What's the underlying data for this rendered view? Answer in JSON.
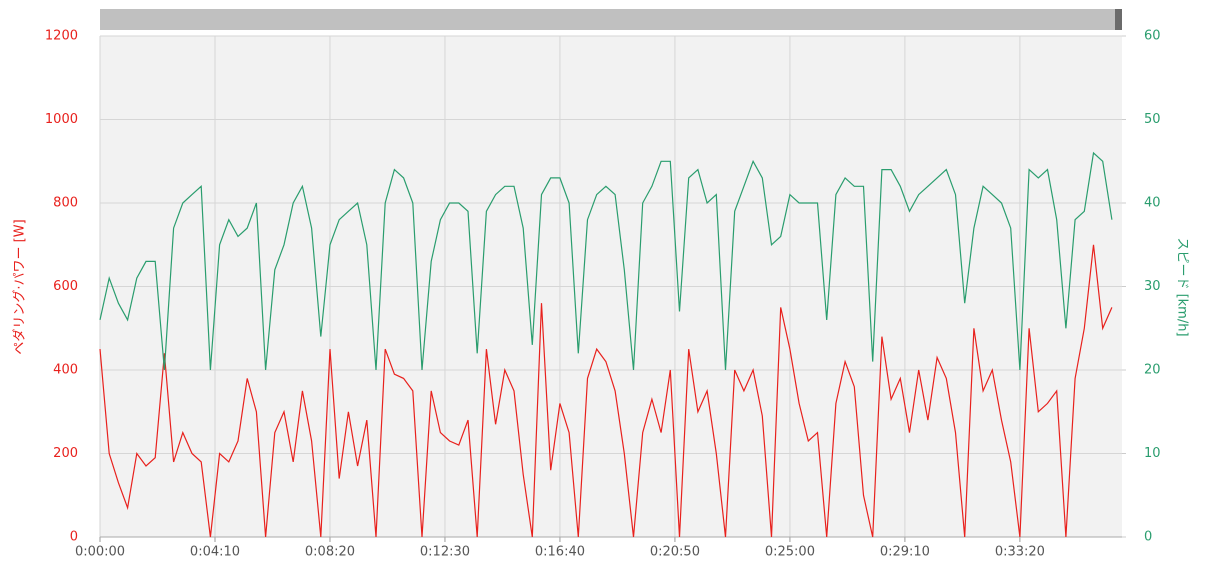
{
  "chart_data": {
    "type": "line",
    "x": [
      0,
      20,
      40,
      60,
      80,
      100,
      120,
      140,
      160,
      180,
      200,
      220,
      240,
      260,
      280,
      300,
      320,
      340,
      360,
      380,
      400,
      420,
      440,
      460,
      480,
      500,
      520,
      540,
      560,
      580,
      600,
      620,
      640,
      660,
      680,
      700,
      720,
      740,
      760,
      780,
      800,
      820,
      840,
      860,
      880,
      900,
      920,
      940,
      960,
      980,
      1000,
      1020,
      1040,
      1060,
      1080,
      1100,
      1120,
      1140,
      1160,
      1180,
      1200,
      1220,
      1240,
      1260,
      1280,
      1300,
      1320,
      1340,
      1360,
      1380,
      1400,
      1420,
      1440,
      1460,
      1480,
      1500,
      1520,
      1540,
      1560,
      1580,
      1600,
      1620,
      1640,
      1660,
      1680,
      1700,
      1720,
      1740,
      1760,
      1780,
      1800,
      1820,
      1840,
      1860,
      1880,
      1900,
      1920,
      1940,
      1960,
      1980,
      2000,
      2020,
      2040,
      2060,
      2080,
      2100,
      2120,
      2140,
      2160,
      2180,
      2200
    ],
    "series": [
      {
        "name": "ペダリング·パワー [W]",
        "color": "#e8211d",
        "values": [
          450,
          200,
          130,
          70,
          200,
          170,
          190,
          440,
          180,
          250,
          200,
          180,
          0,
          200,
          180,
          230,
          380,
          300,
          0,
          250,
          300,
          180,
          350,
          230,
          0,
          450,
          140,
          300,
          170,
          280,
          0,
          450,
          390,
          380,
          350,
          0,
          350,
          250,
          230,
          220,
          280,
          0,
          450,
          270,
          400,
          350,
          150,
          0,
          560,
          160,
          320,
          250,
          0,
          380,
          450,
          420,
          350,
          200,
          0,
          250,
          330,
          250,
          400,
          0,
          450,
          300,
          350,
          200,
          0,
          400,
          350,
          400,
          290,
          0,
          550,
          450,
          320,
          230,
          250,
          0,
          320,
          420,
          360,
          100,
          0,
          480,
          330,
          380,
          250,
          400,
          280,
          430,
          380,
          250,
          0,
          500,
          350,
          400,
          280,
          180,
          0,
          500,
          300,
          320,
          350,
          0,
          380,
          500,
          700,
          500,
          550
        ]
      },
      {
        "name": "スピード [km/h]",
        "color": "#2a9d6e",
        "axis": "y2",
        "values": [
          26,
          31,
          28,
          26,
          31,
          33,
          33,
          20,
          37,
          40,
          41,
          42,
          20,
          35,
          38,
          36,
          37,
          40,
          20,
          32,
          35,
          40,
          42,
          37,
          24,
          35,
          38,
          39,
          40,
          35,
          20,
          40,
          44,
          43,
          40,
          20,
          33,
          38,
          40,
          40,
          39,
          22,
          39,
          41,
          42,
          42,
          37,
          23,
          41,
          43,
          43,
          40,
          22,
          38,
          41,
          42,
          41,
          32,
          20,
          40,
          42,
          45,
          45,
          27,
          43,
          44,
          40,
          41,
          20,
          39,
          42,
          45,
          43,
          35,
          36,
          41,
          40,
          40,
          40,
          26,
          41,
          43,
          42,
          42,
          21,
          44,
          44,
          42,
          39,
          41,
          42,
          43,
          44,
          41,
          28,
          37,
          42,
          41,
          40,
          37,
          20,
          44,
          43,
          44,
          38,
          25,
          38,
          39,
          46,
          45,
          38
        ]
      }
    ],
    "xlim": [
      0,
      2222
    ],
    "xticks": [
      {
        "value": 0,
        "label": "0:00:00"
      },
      {
        "value": 250,
        "label": "0:04:10"
      },
      {
        "value": 500,
        "label": "0:08:20"
      },
      {
        "value": 750,
        "label": "0:12:30"
      },
      {
        "value": 1000,
        "label": "0:16:40"
      },
      {
        "value": 1250,
        "label": "0:20:50"
      },
      {
        "value": 1500,
        "label": "0:25:00"
      },
      {
        "value": 1750,
        "label": "0:29:10"
      },
      {
        "value": 2000,
        "label": "0:33:20"
      }
    ],
    "ylim": [
      0,
      1200
    ],
    "yticks": [
      0,
      200,
      400,
      600,
      800,
      1000,
      1200
    ],
    "y2lim": [
      0,
      60
    ],
    "y2ticks": [
      0,
      10,
      20,
      30,
      40,
      50,
      60
    ],
    "grid": true
  }
}
